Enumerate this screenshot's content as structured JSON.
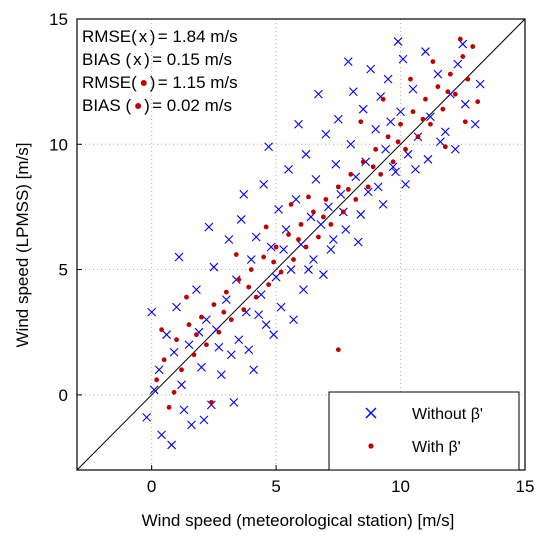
{
  "chart_data": {
    "type": "scatter",
    "xlabel": "Wind speed (meteorological station) [m/s]",
    "ylabel": "Wind speed (LPMSS) [m/s]",
    "xlim": [
      -3,
      15
    ],
    "ylim": [
      -3,
      15
    ],
    "x_ticks": [
      0,
      5,
      10,
      15
    ],
    "y_ticks": [
      0,
      5,
      10,
      15
    ],
    "grid": true,
    "reference_line": "y = x",
    "legend_position": "bottom-right",
    "stats": [
      {
        "label": "RMSE(",
        "marker": "x",
        "label_end": ")",
        "value": "= 1.84 m/s"
      },
      {
        "label": "BIAS  (",
        "marker": "x",
        "label_end": ")",
        "value": "= 0.15 m/s"
      },
      {
        "label": "RMSE(",
        "marker": "dot",
        "label_end": ")",
        "value": "= 1.15 m/s"
      },
      {
        "label": "BIAS  (",
        "marker": "dot",
        "label_end": ")",
        "value": "= 0.02 m/s"
      }
    ],
    "series": [
      {
        "name": "Without β'",
        "marker": "x",
        "color": "#0000ff",
        "rmse": 1.84,
        "bias": 0.15,
        "points": [
          [
            0.3,
            1.0
          ],
          [
            0.6,
            2.4
          ],
          [
            0.8,
            -2.0
          ],
          [
            1.0,
            3.5
          ],
          [
            1.2,
            0.4
          ],
          [
            1.5,
            2.0
          ],
          [
            1.6,
            -1.2
          ],
          [
            1.8,
            4.2
          ],
          [
            2.0,
            1.1
          ],
          [
            2.2,
            3.0
          ],
          [
            2.4,
            -0.4
          ],
          [
            2.5,
            5.1
          ],
          [
            2.6,
            2.6
          ],
          [
            2.8,
            0.8
          ],
          [
            3.0,
            3.8
          ],
          [
            3.1,
            6.2
          ],
          [
            3.2,
            1.6
          ],
          [
            3.4,
            4.6
          ],
          [
            3.5,
            2.2
          ],
          [
            3.6,
            7.0
          ],
          [
            3.8,
            3.3
          ],
          [
            4.0,
            5.4
          ],
          [
            4.1,
            1.0
          ],
          [
            4.2,
            6.3
          ],
          [
            4.4,
            4.0
          ],
          [
            4.5,
            8.4
          ],
          [
            4.6,
            2.8
          ],
          [
            4.8,
            5.9
          ],
          [
            5.0,
            4.7
          ],
          [
            5.1,
            7.4
          ],
          [
            5.2,
            3.5
          ],
          [
            5.4,
            6.6
          ],
          [
            5.5,
            9.0
          ],
          [
            5.6,
            5.0
          ],
          [
            5.8,
            7.8
          ],
          [
            6.0,
            6.0
          ],
          [
            6.1,
            4.2
          ],
          [
            6.2,
            9.6
          ],
          [
            6.4,
            7.1
          ],
          [
            6.5,
            5.4
          ],
          [
            6.6,
            8.6
          ],
          [
            6.8,
            6.8
          ],
          [
            7.0,
            10.4
          ],
          [
            7.1,
            7.5
          ],
          [
            7.2,
            5.8
          ],
          [
            7.4,
            9.2
          ],
          [
            7.5,
            11.0
          ],
          [
            7.6,
            8.0
          ],
          [
            7.8,
            6.6
          ],
          [
            8.0,
            10.0
          ],
          [
            8.1,
            12.1
          ],
          [
            8.2,
            8.7
          ],
          [
            8.4,
            7.2
          ],
          [
            8.5,
            11.4
          ],
          [
            8.6,
            9.3
          ],
          [
            8.8,
            13.0
          ],
          [
            9.0,
            10.6
          ],
          [
            9.1,
            8.3
          ],
          [
            9.2,
            11.9
          ],
          [
            9.4,
            9.8
          ],
          [
            9.5,
            12.6
          ],
          [
            9.6,
            10.9
          ],
          [
            9.8,
            8.9
          ],
          [
            10.0,
            11.3
          ],
          [
            10.1,
            13.4
          ],
          [
            10.3,
            9.6
          ],
          [
            10.5,
            12.2
          ],
          [
            10.7,
            10.3
          ],
          [
            11.0,
            13.7
          ],
          [
            11.2,
            11.1
          ],
          [
            11.5,
            12.8
          ],
          [
            11.8,
            10.5
          ],
          [
            12.0,
            12.0
          ],
          [
            12.3,
            13.2
          ],
          [
            12.6,
            11.6
          ],
          [
            13.0,
            10.8
          ],
          [
            13.2,
            12.4
          ],
          [
            -0.2,
            -0.9
          ],
          [
            0.1,
            0.2
          ],
          [
            0.4,
            -1.6
          ],
          [
            0.9,
            1.7
          ],
          [
            1.3,
            -0.6
          ],
          [
            1.9,
            2.5
          ],
          [
            2.1,
            -1.0
          ],
          [
            2.7,
            1.9
          ],
          [
            3.3,
            -0.3
          ],
          [
            3.9,
            1.8
          ],
          [
            4.3,
            3.2
          ],
          [
            4.9,
            2.4
          ],
          [
            5.3,
            5.8
          ],
          [
            5.7,
            3.0
          ],
          [
            6.3,
            5.0
          ],
          [
            6.9,
            4.8
          ],
          [
            7.3,
            6.2
          ],
          [
            7.7,
            7.3
          ],
          [
            8.3,
            6.1
          ],
          [
            8.7,
            8.1
          ],
          [
            9.3,
            7.6
          ],
          [
            9.7,
            9.1
          ],
          [
            10.2,
            8.4
          ],
          [
            10.6,
            9.0
          ],
          [
            11.1,
            9.4
          ],
          [
            11.6,
            10.1
          ],
          [
            12.2,
            9.8
          ],
          [
            0.0,
            3.3
          ],
          [
            1.1,
            5.5
          ],
          [
            2.3,
            6.7
          ],
          [
            3.7,
            8.0
          ],
          [
            4.7,
            9.9
          ],
          [
            5.9,
            10.8
          ],
          [
            6.7,
            12.0
          ],
          [
            7.9,
            13.3
          ],
          [
            9.9,
            14.1
          ],
          [
            12.5,
            14.0
          ]
        ]
      },
      {
        "name": "With β'",
        "marker": "dot",
        "color": "#c00000",
        "rmse": 1.15,
        "bias": 0.02,
        "points": [
          [
            0.2,
            0.6
          ],
          [
            0.5,
            1.4
          ],
          [
            0.7,
            -0.5
          ],
          [
            1.0,
            2.2
          ],
          [
            1.2,
            1.0
          ],
          [
            1.5,
            2.8
          ],
          [
            1.7,
            1.6
          ],
          [
            2.0,
            3.1
          ],
          [
            2.2,
            2.0
          ],
          [
            2.5,
            3.6
          ],
          [
            2.7,
            2.5
          ],
          [
            3.0,
            4.1
          ],
          [
            3.2,
            3.0
          ],
          [
            3.5,
            4.6
          ],
          [
            3.7,
            3.4
          ],
          [
            4.0,
            5.0
          ],
          [
            4.2,
            3.9
          ],
          [
            4.5,
            5.5
          ],
          [
            4.7,
            4.4
          ],
          [
            5.0,
            5.9
          ],
          [
            5.2,
            4.9
          ],
          [
            5.5,
            6.4
          ],
          [
            5.7,
            5.4
          ],
          [
            6.0,
            6.8
          ],
          [
            6.2,
            5.9
          ],
          [
            6.5,
            7.3
          ],
          [
            6.7,
            6.3
          ],
          [
            7.0,
            7.8
          ],
          [
            7.2,
            6.8
          ],
          [
            7.5,
            8.3
          ],
          [
            7.7,
            7.3
          ],
          [
            8.0,
            8.8
          ],
          [
            8.2,
            7.8
          ],
          [
            8.5,
            9.3
          ],
          [
            8.7,
            8.3
          ],
          [
            9.0,
            9.8
          ],
          [
            9.2,
            8.8
          ],
          [
            9.5,
            10.3
          ],
          [
            9.7,
            9.3
          ],
          [
            10.0,
            10.8
          ],
          [
            10.2,
            9.8
          ],
          [
            10.5,
            11.3
          ],
          [
            10.7,
            10.3
          ],
          [
            11.0,
            11.8
          ],
          [
            11.2,
            10.8
          ],
          [
            11.5,
            12.3
          ],
          [
            11.7,
            11.4
          ],
          [
            12.0,
            12.8
          ],
          [
            12.2,
            12.0
          ],
          [
            12.5,
            13.5
          ],
          [
            12.7,
            12.6
          ],
          [
            12.9,
            13.9
          ],
          [
            0.9,
            0.1
          ],
          [
            1.8,
            2.4
          ],
          [
            2.9,
            3.3
          ],
          [
            3.9,
            4.3
          ],
          [
            4.9,
            5.3
          ],
          [
            5.9,
            6.2
          ],
          [
            6.9,
            7.1
          ],
          [
            7.9,
            8.2
          ],
          [
            8.9,
            9.1
          ],
          [
            9.9,
            10.1
          ],
          [
            10.9,
            11.0
          ],
          [
            11.9,
            12.1
          ],
          [
            7.5,
            1.8
          ],
          [
            2.4,
            -0.3
          ],
          [
            6.3,
            7.9
          ],
          [
            8.4,
            10.9
          ],
          [
            9.3,
            11.8
          ],
          [
            10.4,
            12.6
          ],
          [
            11.3,
            13.3
          ],
          [
            12.4,
            14.2
          ],
          [
            3.4,
            5.6
          ],
          [
            4.6,
            6.7
          ],
          [
            5.6,
            7.6
          ],
          [
            1.4,
            3.9
          ],
          [
            0.4,
            2.6
          ],
          [
            11.8,
            9.9
          ],
          [
            12.6,
            10.9
          ],
          [
            13.1,
            11.7
          ]
        ]
      }
    ]
  }
}
